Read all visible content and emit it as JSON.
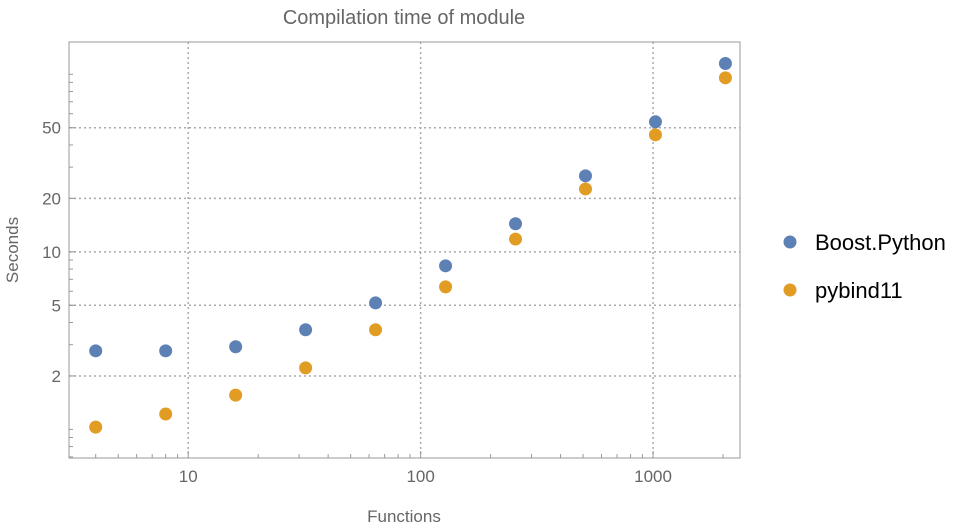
{
  "chart_data": {
    "type": "scatter",
    "title": "Compilation time of module",
    "xlabel": "Functions",
    "ylabel": "Seconds",
    "x_scale": "log",
    "y_scale": "log",
    "xlim": [
      3.07,
      2366
    ],
    "ylim": [
      0.69,
      152
    ],
    "x_ticks": [
      10,
      100,
      1000
    ],
    "x_tick_labels": [
      "10",
      "100",
      "1000"
    ],
    "y_ticks": [
      2,
      5,
      10,
      20,
      50
    ],
    "y_tick_labels": [
      "2",
      "5",
      "10",
      "20",
      "50"
    ],
    "grid": true,
    "legend_position": "right",
    "x": [
      4,
      8,
      16,
      32,
      64,
      128,
      256,
      512,
      1024,
      2048
    ],
    "series": [
      {
        "name": "Boost.Python",
        "color": "#5e81b5",
        "values": [
          2.77,
          2.77,
          2.92,
          3.64,
          5.16,
          8.34,
          14.4,
          26.8,
          54,
          115
        ]
      },
      {
        "name": "pybind11",
        "color": "#e19c24",
        "values": [
          1.03,
          1.22,
          1.56,
          2.22,
          3.64,
          6.35,
          11.8,
          22.6,
          45.6,
          95.5
        ]
      }
    ]
  }
}
